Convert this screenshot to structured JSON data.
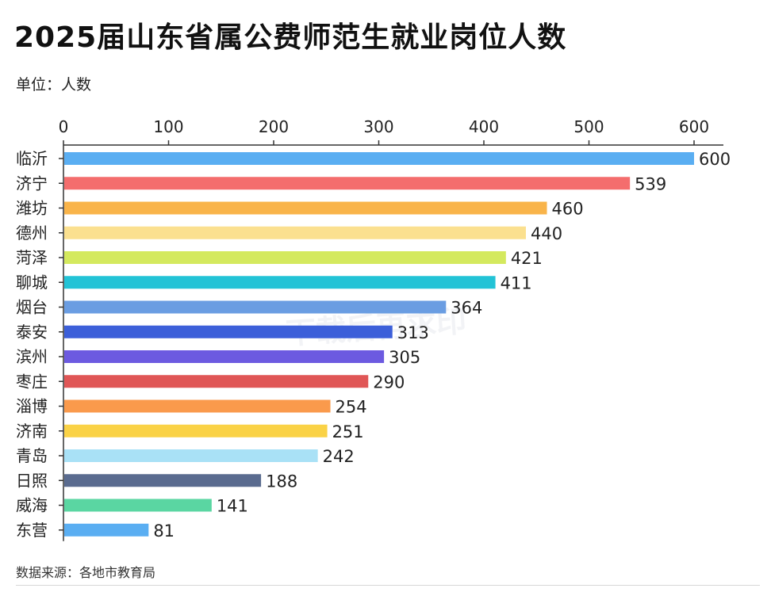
{
  "title": "2025届山东省属公费师范生就业岗位人数",
  "unit_label": "单位：人数",
  "source_label": "数据来源：各地市教育局",
  "watermark": "下载后再求印",
  "chart_data": {
    "type": "bar",
    "orientation": "horizontal",
    "title": "2025届山东省属公费师范生就业岗位人数",
    "xlim": [
      0,
      600
    ],
    "xticks": [
      0,
      100,
      200,
      300,
      400,
      500,
      600
    ],
    "axis_position": "top",
    "grid": false,
    "categories": [
      "临沂",
      "济宁",
      "潍坊",
      "德州",
      "菏泽",
      "聊城",
      "烟台",
      "泰安",
      "滨州",
      "枣庄",
      "淄博",
      "济南",
      "青岛",
      "日照",
      "威海",
      "东营"
    ],
    "values": [
      600,
      539,
      460,
      440,
      421,
      411,
      364,
      313,
      305,
      290,
      254,
      251,
      242,
      188,
      141,
      81
    ],
    "colors": [
      "#5aaef2",
      "#f46d6d",
      "#f9b44a",
      "#fbe08f",
      "#d4e95e",
      "#22c3d6",
      "#6a9de2",
      "#3c5fd9",
      "#6c5ae0",
      "#e05656",
      "#fa9a4c",
      "#fad246",
      "#a9e1f6",
      "#5a6b8f",
      "#5ad6a2",
      "#5aaef2"
    ]
  }
}
